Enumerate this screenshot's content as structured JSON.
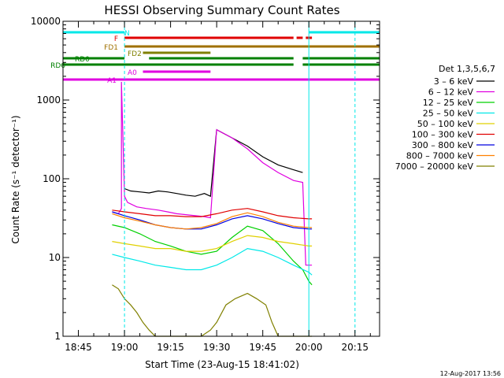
{
  "chart_data": {
    "type": "line",
    "title": "HESSI Observing Summary Count Rates",
    "xlabel": "Start Time (23-Aug-15 18:41:02)",
    "ylabel": "Count Rate (s⁻¹ detector⁻¹)",
    "y_scale": "log",
    "xlim": [
      "18:40",
      "20:23"
    ],
    "ylim": [
      1,
      10000
    ],
    "x_ticks": [
      "18:45",
      "19:00",
      "19:15",
      "19:30",
      "19:45",
      "20:00",
      "20:15"
    ],
    "y_ticks": [
      "1",
      "10",
      "100",
      "1000",
      "10000"
    ],
    "legend": {
      "placement": "right",
      "title": "Det 1,3,5,6,7",
      "entries": [
        {
          "label": "3 – 6 keV",
          "color": "#000000"
        },
        {
          "label": "6 – 12 keV",
          "color": "#e000e0"
        },
        {
          "label": "12 – 25 keV",
          "color": "#00d000"
        },
        {
          "label": "25 – 50 keV",
          "color": "#00e8e8"
        },
        {
          "label": "50 – 100 keV",
          "color": "#e0d000"
        },
        {
          "label": "100 – 300 keV",
          "color": "#e00000"
        },
        {
          "label": "300 – 800 keV",
          "color": "#0000e0"
        },
        {
          "label": "800 – 7000 keV",
          "color": "#ff8000"
        },
        {
          "label": "7000 – 20000 keV",
          "color": "#808000"
        }
      ]
    },
    "series": [
      {
        "name": "3 – 6 keV",
        "color": "#000000",
        "x": [
          "19:00",
          "19:02",
          "19:05",
          "19:08",
          "19:11",
          "19:14",
          "19:17",
          "19:20",
          "19:23",
          "19:26",
          "19:28",
          "19:30",
          "19:35",
          "19:40",
          "19:45",
          "19:50",
          "19:55",
          "19:58"
        ],
        "y": [
          75,
          70,
          68,
          66,
          70,
          68,
          65,
          62,
          60,
          65,
          60,
          420,
          330,
          260,
          190,
          150,
          130,
          120
        ]
      },
      {
        "name": "6 – 12 keV",
        "color": "#e000e0",
        "x": [
          "18:56",
          "18:58",
          "18:59",
          "18:59",
          "19:00",
          "19:01",
          "19:04",
          "19:07",
          "19:11",
          "19:14",
          "19:17",
          "19:20",
          "19:23",
          "19:26",
          "19:28",
          "19:30",
          "19:35",
          "19:40",
          "19:45",
          "19:50",
          "19:55",
          "19:58",
          "19:59",
          "20:01"
        ],
        "y": [
          38,
          36,
          42,
          1700,
          60,
          50,
          44,
          42,
          40,
          38,
          36,
          35,
          34,
          33,
          32,
          420,
          330,
          240,
          160,
          120,
          95,
          90,
          8,
          8
        ]
      },
      {
        "name": "12 – 25 keV",
        "color": "#00d000",
        "x": [
          "18:56",
          "19:00",
          "19:05",
          "19:10",
          "19:15",
          "19:20",
          "19:25",
          "19:30",
          "19:35",
          "19:40",
          "19:45",
          "19:50",
          "19:55",
          "19:58",
          "20:00",
          "20:01"
        ],
        "y": [
          26,
          24,
          20,
          16,
          14,
          12,
          11,
          12,
          18,
          25,
          22,
          15,
          9,
          7,
          5,
          4.5
        ]
      },
      {
        "name": "25 – 50 keV",
        "color": "#00e8e8",
        "x": [
          "18:56",
          "19:00",
          "19:05",
          "19:10",
          "19:15",
          "19:20",
          "19:25",
          "19:30",
          "19:35",
          "19:40",
          "19:45",
          "19:50",
          "19:55",
          "20:00",
          "20:01"
        ],
        "y": [
          11,
          10,
          9,
          8,
          7.5,
          7,
          7,
          8,
          10,
          13,
          12,
          10,
          8,
          6.5,
          6
        ]
      },
      {
        "name": "50 – 100 keV",
        "color": "#e0d000",
        "x": [
          "18:56",
          "19:00",
          "19:05",
          "19:10",
          "19:15",
          "19:20",
          "19:25",
          "19:30",
          "19:35",
          "19:40",
          "19:45",
          "19:50",
          "19:55",
          "20:00",
          "20:01"
        ],
        "y": [
          16,
          15,
          14,
          13,
          13,
          12,
          12,
          13,
          16,
          19,
          18,
          16,
          15,
          14,
          14
        ]
      },
      {
        "name": "100 – 300 keV",
        "color": "#e00000",
        "x": [
          "18:56",
          "19:00",
          "19:05",
          "19:10",
          "19:15",
          "19:20",
          "19:25",
          "19:30",
          "19:35",
          "19:40",
          "19:45",
          "19:50",
          "19:55",
          "20:00",
          "20:01"
        ],
        "y": [
          40,
          38,
          36,
          34,
          34,
          33,
          33,
          36,
          40,
          42,
          38,
          34,
          32,
          31,
          31
        ]
      },
      {
        "name": "300 – 800 keV",
        "color": "#0000e0",
        "x": [
          "18:56",
          "19:00",
          "19:05",
          "19:10",
          "19:15",
          "19:20",
          "19:25",
          "19:30",
          "19:35",
          "19:40",
          "19:45",
          "19:50",
          "19:55",
          "20:00",
          "20:01"
        ],
        "y": [
          38,
          34,
          30,
          26,
          24,
          23,
          23,
          26,
          31,
          34,
          31,
          27,
          24,
          23,
          23
        ]
      },
      {
        "name": "800 – 7000 keV",
        "color": "#ff8000",
        "x": [
          "18:56",
          "19:00",
          "19:05",
          "19:10",
          "19:15",
          "19:20",
          "19:25",
          "19:30",
          "19:35",
          "19:40",
          "19:45",
          "19:50",
          "19:55",
          "20:00",
          "20:01"
        ],
        "y": [
          36,
          32,
          29,
          26,
          24,
          23,
          24,
          27,
          33,
          37,
          33,
          28,
          25,
          24,
          24
        ]
      },
      {
        "name": "7000 – 20000 keV",
        "color": "#808000",
        "x": [
          "18:56",
          "18:58",
          "19:00",
          "19:02",
          "19:04",
          "19:06",
          "19:08",
          "19:10",
          "19:20",
          "19:25",
          "19:28",
          "19:30",
          "19:33",
          "19:36",
          "19:40",
          "19:43",
          "19:46",
          "19:48",
          "19:50",
          "19:55",
          "20:01"
        ],
        "y": [
          4.5,
          4.0,
          3.0,
          2.5,
          2.0,
          1.5,
          1.2,
          1.0,
          1.0,
          1.0,
          1.2,
          1.5,
          2.5,
          3.0,
          3.5,
          3.0,
          2.5,
          1.5,
          1.0,
          1.0,
          1.0
        ]
      }
    ],
    "flag_bars": [
      {
        "label": "N",
        "color": "#00e8e8",
        "segments": [
          [
            "18:40",
            "19:00"
          ],
          [
            "20:00",
            "20:23"
          ]
        ]
      },
      {
        "label": "F",
        "color": "#e00000",
        "segments": [
          [
            "19:00",
            "19:55"
          ],
          [
            "19:56",
            "19:58"
          ],
          [
            "19:59",
            "20:01"
          ]
        ]
      },
      {
        "label": "FD1",
        "color": "#a07000",
        "segments": [
          [
            "19:00",
            "20:23"
          ]
        ]
      },
      {
        "label": "FD2",
        "color": "#808000",
        "segments": [
          [
            "19:06",
            "19:28"
          ]
        ]
      },
      {
        "label": "RD0",
        "color": "#008000",
        "segments": [
          [
            "18:40",
            "19:00"
          ],
          [
            "19:08",
            "19:55"
          ],
          [
            "19:58",
            "20:23"
          ]
        ]
      },
      {
        "label": "RD6",
        "color": "#008000",
        "segments": [
          [
            "18:40",
            "19:55"
          ],
          [
            "19:58",
            "20:23"
          ]
        ]
      },
      {
        "label": "A0",
        "color": "#e000e0",
        "segments": [
          [
            "19:06",
            "19:28"
          ]
        ]
      },
      {
        "label": "A1",
        "color": "#e000e0",
        "segments": [
          [
            "18:40",
            "20:23"
          ]
        ]
      }
    ],
    "vertical_markers": [
      {
        "x": "19:00",
        "color": "#00e8e8",
        "style": "dashed"
      },
      {
        "x": "20:00",
        "color": "#00e8e8",
        "style": "solid"
      },
      {
        "x": "20:15",
        "color": "#00e8e8",
        "style": "dashed"
      }
    ]
  },
  "footer": {
    "timestamp": "12-Aug-2017 13:56"
  }
}
